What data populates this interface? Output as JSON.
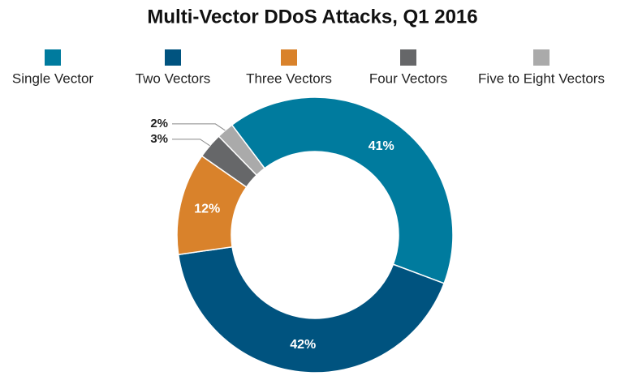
{
  "chart_data": {
    "type": "donut",
    "title": "Multi-Vector DDoS Attacks, Q1 2016",
    "categories": [
      "Single Vector",
      "Two Vectors",
      "Three Vectors",
      "Four Vectors",
      "Five to Eight Vectors"
    ],
    "values": [
      41,
      42,
      12,
      3,
      2
    ],
    "value_labels": [
      "41%",
      "42%",
      "12%",
      "3%",
      "2%"
    ],
    "colors": [
      "#007b9e",
      "#00537f",
      "#d9822b",
      "#666769",
      "#aaaaaa"
    ]
  }
}
